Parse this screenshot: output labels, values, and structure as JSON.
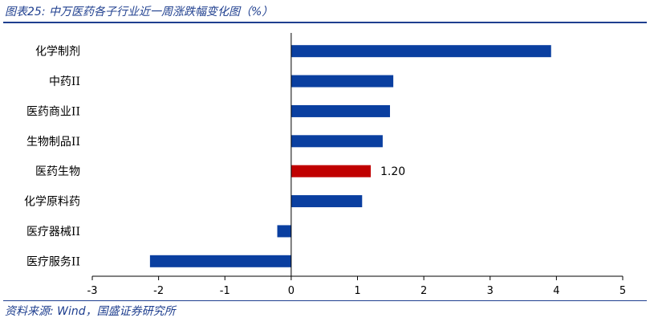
{
  "title": "图表25:  中万医药各子行业近一周涨跌幅变化图（%）",
  "source": "资料来源:  Wind，国盛证券研究所",
  "colors": {
    "bar": "#0a3fa0",
    "highlight": "#c00000",
    "axis": "#000000",
    "heading": "#1f3f8f"
  },
  "chart_data": {
    "type": "bar",
    "orientation": "horizontal",
    "title": "图表25:  中万医药各子行业近一周涨跌幅变化图（%）",
    "xlabel": "",
    "ylabel": "",
    "xlim": [
      -3,
      5
    ],
    "xticks": [
      -3,
      -2,
      -1,
      0,
      1,
      2,
      3,
      4,
      5
    ],
    "grid": false,
    "categories": [
      "化学制剂",
      "中药II",
      "医药商业II",
      "生物制品II",
      "医药生物",
      "化学原料药",
      "医疗器械II",
      "医疗服务II"
    ],
    "values": [
      3.92,
      1.54,
      1.49,
      1.38,
      1.2,
      1.07,
      -0.21,
      -2.13
    ],
    "highlight_index": 4,
    "data_labels": [
      {
        "category": "医药生物",
        "text": "1.20"
      }
    ]
  }
}
